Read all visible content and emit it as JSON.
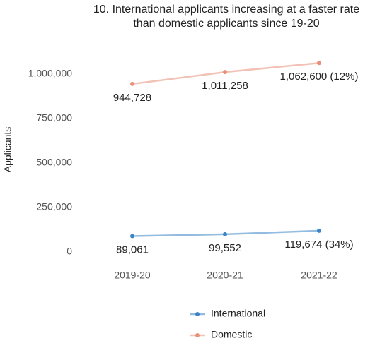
{
  "chart_data": {
    "type": "line",
    "title": [
      "10. International applicants increasing at a faster rate",
      "than domestic applicants since 19-20"
    ],
    "y_label": "Applicants",
    "categories": [
      "2019-20",
      "2020-21",
      "2021-22"
    ],
    "series": [
      {
        "name": "International",
        "color": "#3d85c6",
        "values": [
          89061,
          99552,
          119674
        ],
        "value_labels": [
          "89,061",
          "99,552",
          "119,674 (34%)"
        ]
      },
      {
        "name": "Domestic",
        "color": "#e8907a",
        "values": [
          944728,
          1011258,
          1062600
        ],
        "value_labels": [
          "944,728",
          "1,011,258",
          "1,062,600 (12%)"
        ]
      }
    ],
    "ylim": [
      0,
      1000000
    ],
    "yticks": [
      0,
      {
        "value": 250000,
        "label": "250,000"
      },
      {
        "value": 500000,
        "label": "500,000"
      },
      {
        "value": 750000,
        "label": "750,000"
      },
      {
        "value": 1000000,
        "label": "1,000,000"
      }
    ],
    "grid": false
  }
}
